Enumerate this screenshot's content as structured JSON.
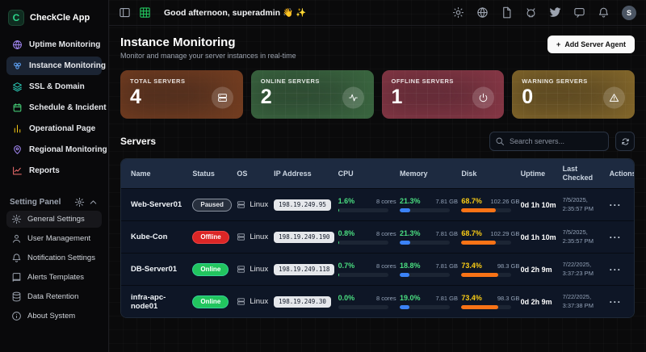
{
  "app": {
    "name": "CheckCle App",
    "logo_letter": "C"
  },
  "header": {
    "greeting": "Good afternoon, superadmin 👋 ✨",
    "avatar_initial": "S"
  },
  "sidebar": {
    "nav": [
      {
        "label": "Uptime Monitoring",
        "icon": "globe-icon",
        "color": "#a78bfa",
        "active": false
      },
      {
        "label": "Instance Monitoring",
        "icon": "cluster-icon",
        "color": "#60a5fa",
        "active": true
      },
      {
        "label": "SSL & Domain",
        "icon": "layers-icon",
        "color": "#2dd4bf",
        "active": false
      },
      {
        "label": "Schedule & Incident",
        "icon": "calendar-icon",
        "color": "#4ade80",
        "active": false
      },
      {
        "label": "Operational Page",
        "icon": "bar-chart-icon",
        "color": "#facc15",
        "active": false
      },
      {
        "label": "Regional Monitoring",
        "icon": "map-pin-icon",
        "color": "#a78bfa",
        "active": false
      },
      {
        "label": "Reports",
        "icon": "trend-chart-icon",
        "color": "#f87171",
        "active": false
      }
    ],
    "settings_panel": {
      "title": "Setting Panel",
      "items": [
        {
          "label": "General Settings",
          "icon": "gear-icon"
        },
        {
          "label": "User Management",
          "icon": "user-icon"
        },
        {
          "label": "Notification Settings",
          "icon": "bell-icon"
        },
        {
          "label": "Alerts Templates",
          "icon": "book-icon"
        },
        {
          "label": "Data Retention",
          "icon": "database-icon"
        },
        {
          "label": "About System",
          "icon": "info-icon"
        }
      ]
    }
  },
  "page": {
    "title": "Instance Monitoring",
    "subtitle": "Monitor and manage your server instances in real-time",
    "add_button": {
      "icon": "+",
      "label": "Add Server Agent"
    }
  },
  "stats": [
    {
      "label": "TOTAL SERVERS",
      "value": "4",
      "icon": "server-icon"
    },
    {
      "label": "ONLINE SERVERS",
      "value": "2",
      "icon": "activity-icon"
    },
    {
      "label": "OFFLINE SERVERS",
      "value": "1",
      "icon": "power-icon"
    },
    {
      "label": "WARNING SERVERS",
      "value": "0",
      "icon": "warning-triangle-icon"
    }
  ],
  "servers": {
    "heading": "Servers",
    "search_placeholder": "Search servers...",
    "actions_glyph": "···",
    "columns": [
      "Name",
      "Status",
      "OS",
      "IP Address",
      "CPU",
      "Memory",
      "Disk",
      "Uptime",
      "Last Checked",
      "Actions"
    ],
    "rows": [
      {
        "name": "Web-Server01",
        "status": {
          "label": "Paused",
          "type": "paused"
        },
        "os": "Linux",
        "ip": "198.19.249.95",
        "cpu": {
          "pct": "1.6%",
          "pct_num": 1.6,
          "detail": "8 cores"
        },
        "memory": {
          "pct": "21.3%",
          "pct_num": 21.3,
          "detail": "7.81 GB"
        },
        "disk": {
          "pct": "68.7%",
          "pct_num": 68.7,
          "detail": "102.26 GB"
        },
        "uptime": "0d 1h 10m",
        "last_checked_date": "7/5/2025,",
        "last_checked_time": "2:35:57 PM"
      },
      {
        "name": "Kube-Con",
        "status": {
          "label": "Offline",
          "type": "offline"
        },
        "os": "Linux",
        "ip": "198.19.249.190",
        "cpu": {
          "pct": "0.8%",
          "pct_num": 0.8,
          "detail": "8 cores"
        },
        "memory": {
          "pct": "21.3%",
          "pct_num": 21.3,
          "detail": "7.81 GB"
        },
        "disk": {
          "pct": "68.7%",
          "pct_num": 68.7,
          "detail": "102.29 GB"
        },
        "uptime": "0d 1h 10m",
        "last_checked_date": "7/5/2025,",
        "last_checked_time": "2:35:57 PM"
      },
      {
        "name": "DB-Server01",
        "status": {
          "label": "Online",
          "type": "online"
        },
        "os": "Linux",
        "ip": "198.19.249.118",
        "cpu": {
          "pct": "0.7%",
          "pct_num": 0.7,
          "detail": "8 cores"
        },
        "memory": {
          "pct": "18.8%",
          "pct_num": 18.8,
          "detail": "7.81 GB"
        },
        "disk": {
          "pct": "73.4%",
          "pct_num": 73.4,
          "detail": "98.3 GB"
        },
        "uptime": "0d 2h 9m",
        "last_checked_date": "7/22/2025,",
        "last_checked_time": "3:37:23 PM"
      },
      {
        "name": "infra-apc-node01",
        "status": {
          "label": "Online",
          "type": "online"
        },
        "os": "Linux",
        "ip": "198.19.249.30",
        "cpu": {
          "pct": "0.0%",
          "pct_num": 0.0,
          "detail": "8 cores"
        },
        "memory": {
          "pct": "19.0%",
          "pct_num": 19.0,
          "detail": "7.81 GB"
        },
        "disk": {
          "pct": "73.4%",
          "pct_num": 73.4,
          "detail": "98.3 GB"
        },
        "uptime": "0d 2h 9m",
        "last_checked_date": "7/22/2025,",
        "last_checked_time": "3:37:38 PM"
      }
    ]
  },
  "colors": {
    "online": "#22c55e",
    "offline": "#dc2626",
    "warning": "#facc15",
    "cpu_pct": "#4ade80",
    "memory_bar": "#3b82f6",
    "disk_bar": "#f97316",
    "active_nav_bg": "#1b2433"
  }
}
